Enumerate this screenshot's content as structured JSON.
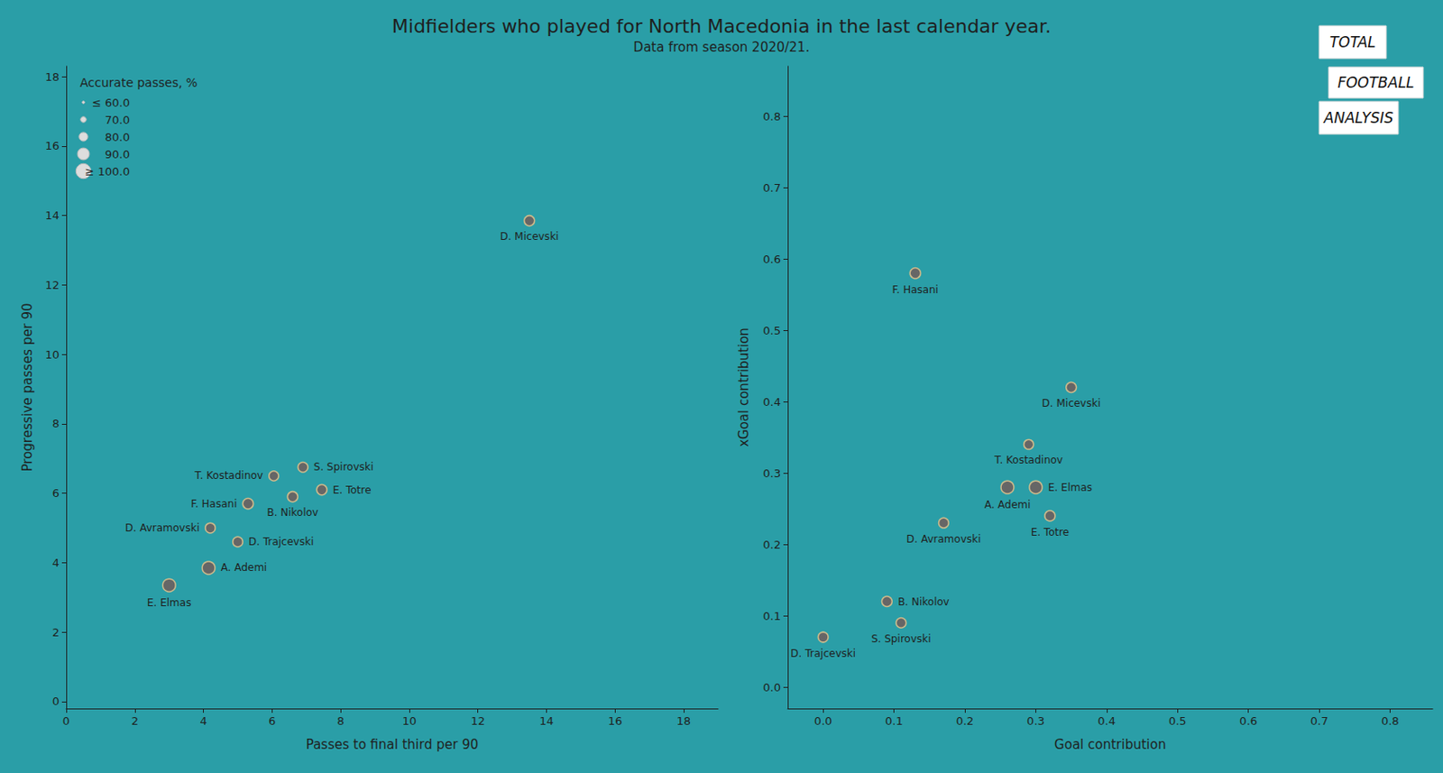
{
  "title": "Midfielders who played for North Macedonia in the last calendar year.",
  "subtitle": "Data from season 2020/21.",
  "logo": [
    "TOTAL",
    "FOOTBALL",
    "ANALYSIS"
  ],
  "chart_data": [
    {
      "type": "scatter",
      "x_label": "Passes to final third per 90",
      "y_label": "Progressive passes per 90",
      "labels": [
        "D. Micevski",
        "S. Spirovski",
        "T. Kostadinov",
        "E. Totre",
        "B. Nikolov",
        "F. Hasani",
        "D. Avramovski",
        "D. Trajcevski",
        "A. Ademi",
        "E. Elmas"
      ],
      "x": [
        13.5,
        6.9,
        6.05,
        7.45,
        6.6,
        5.3,
        4.2,
        5.0,
        4.15,
        3.0
      ],
      "values": [
        13.85,
        6.75,
        6.5,
        6.1,
        5.9,
        5.7,
        5.0,
        4.6,
        3.85,
        3.35
      ],
      "sizes": [
        85,
        84,
        83,
        85,
        85,
        86,
        84,
        84,
        93,
        93
      ],
      "color": "#666666",
      "marker": "circle",
      "xlim": [
        0,
        19
      ],
      "xticks": [
        0,
        2,
        4,
        6,
        8,
        10,
        12,
        14,
        16,
        18
      ],
      "ylim": [
        -0.2,
        18.3
      ],
      "yticks": [
        0,
        2,
        4,
        6,
        8,
        10,
        12,
        14,
        16,
        18
      ],
      "grid": false,
      "size_legend": {
        "title": "Accurate passes, %",
        "values": [
          {
            "value": 60,
            "label": "≤ 60.0"
          },
          {
            "value": 70,
            "label": "70.0"
          },
          {
            "value": 80,
            "label": "80.0"
          },
          {
            "value": 90,
            "label": "90.0"
          },
          {
            "value": 100,
            "label": "≥ 100.0"
          }
        ]
      }
    },
    {
      "type": "scatter",
      "x_label": "Goal contribution",
      "y_label": "xGoal contribution",
      "labels": [
        "F. Hasani",
        "D. Micevski",
        "T. Kostadinov",
        "A. Ademi",
        "E. Elmas",
        "E. Totre",
        "D. Avramovski",
        "B. Nikolov",
        "S. Spirovski",
        "D. Trajcevski"
      ],
      "x": [
        0.13,
        0.35,
        0.29,
        0.26,
        0.3,
        0.32,
        0.17,
        0.09,
        0.11,
        0.0
      ],
      "values": [
        0.58,
        0.42,
        0.34,
        0.28,
        0.28,
        0.24,
        0.23,
        0.12,
        0.09,
        0.07
      ],
      "sizes": [
        86,
        85,
        83,
        93,
        93,
        85,
        84,
        85,
        84,
        84
      ],
      "color": "#666666",
      "marker": "circle",
      "xlim": [
        -0.05,
        0.86
      ],
      "xticks": [
        {
          "value": 0,
          "label": "0.0"
        },
        {
          "value": 0.1,
          "label": "0.1"
        },
        {
          "value": 0.2,
          "label": "0.2"
        },
        {
          "value": 0.3,
          "label": "0.3"
        },
        {
          "value": 0.4,
          "label": "0.4"
        },
        {
          "value": 0.5,
          "label": "0.5"
        },
        {
          "value": 0.6,
          "label": "0.6"
        },
        {
          "value": 0.7,
          "label": "0.7"
        },
        {
          "value": 0.8,
          "label": "0.8"
        }
      ],
      "ylim": [
        -0.03,
        0.87
      ],
      "yticks": [
        {
          "value": 0,
          "label": "0.0"
        },
        {
          "value": 0.1,
          "label": "0.1"
        },
        {
          "value": 0.2,
          "label": "0.2"
        },
        {
          "value": 0.3,
          "label": "0.3"
        },
        {
          "value": 0.4,
          "label": "0.4"
        },
        {
          "value": 0.5,
          "label": "0.5"
        },
        {
          "value": 0.6,
          "label": "0.6"
        },
        {
          "value": 0.7,
          "label": "0.7"
        },
        {
          "value": 0.8,
          "label": "0.8"
        }
      ],
      "grid": false
    }
  ]
}
